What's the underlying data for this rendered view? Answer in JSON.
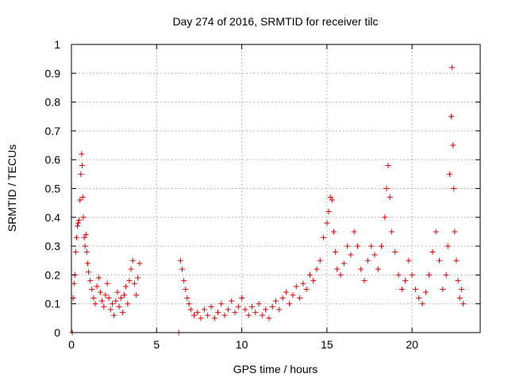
{
  "chart_data": {
    "type": "scatter",
    "title": "Day 274 of 2016, SRMTID for receiver tilc",
    "xlabel": "GPS time / hours",
    "ylabel": "SRMTID / TECUs",
    "xlim": [
      0,
      24
    ],
    "ylim": [
      0,
      1
    ],
    "x_ticks": [
      0,
      5,
      10,
      15,
      20
    ],
    "y_ticks": [
      0,
      0.1,
      0.2,
      0.3,
      0.4,
      0.5,
      0.6,
      0.7,
      0.8,
      0.9,
      1
    ],
    "x_tick_labels": [
      "0",
      "5",
      "10",
      "15",
      "20"
    ],
    "y_tick_labels": [
      "0",
      "0.1",
      "0.2",
      "0.3",
      "0.4",
      "0.5",
      "0.6",
      "0.7",
      "0.8",
      "0.9",
      "1"
    ],
    "grid": true,
    "series": [
      {
        "color": "#e00000",
        "marker": "plus",
        "points": [
          [
            0.05,
            0.0
          ],
          [
            0.1,
            0.12
          ],
          [
            0.15,
            0.17
          ],
          [
            0.2,
            0.2
          ],
          [
            0.25,
            0.28
          ],
          [
            0.3,
            0.33
          ],
          [
            0.35,
            0.37
          ],
          [
            0.4,
            0.38
          ],
          [
            0.45,
            0.39
          ],
          [
            0.5,
            0.46
          ],
          [
            0.55,
            0.55
          ],
          [
            0.6,
            0.62
          ],
          [
            0.63,
            0.58
          ],
          [
            0.66,
            0.47
          ],
          [
            0.7,
            0.4
          ],
          [
            0.75,
            0.33
          ],
          [
            0.8,
            0.3
          ],
          [
            0.85,
            0.34
          ],
          [
            0.9,
            0.28
          ],
          [
            0.95,
            0.24
          ],
          [
            1.0,
            0.21
          ],
          [
            1.1,
            0.18
          ],
          [
            1.2,
            0.15
          ],
          [
            1.3,
            0.12
          ],
          [
            1.4,
            0.1
          ],
          [
            1.5,
            0.16
          ],
          [
            1.6,
            0.19
          ],
          [
            1.7,
            0.14
          ],
          [
            1.8,
            0.11
          ],
          [
            1.9,
            0.09
          ],
          [
            2.0,
            0.13
          ],
          [
            2.1,
            0.17
          ],
          [
            2.2,
            0.12
          ],
          [
            2.3,
            0.08
          ],
          [
            2.4,
            0.1
          ],
          [
            2.5,
            0.06
          ],
          [
            2.6,
            0.11
          ],
          [
            2.7,
            0.14
          ],
          [
            2.8,
            0.09
          ],
          [
            2.9,
            0.12
          ],
          [
            3.0,
            0.07
          ],
          [
            3.1,
            0.13
          ],
          [
            3.2,
            0.16
          ],
          [
            3.3,
            0.1
          ],
          [
            3.4,
            0.18
          ],
          [
            3.5,
            0.22
          ],
          [
            3.6,
            0.25
          ],
          [
            3.7,
            0.17
          ],
          [
            3.8,
            0.13
          ],
          [
            3.9,
            0.19
          ],
          [
            4.0,
            0.24
          ],
          [
            6.3,
            0.0
          ],
          [
            6.4,
            0.25
          ],
          [
            6.5,
            0.22
          ],
          [
            6.6,
            0.18
          ],
          [
            6.7,
            0.15
          ],
          [
            6.8,
            0.12
          ],
          [
            6.9,
            0.1
          ],
          [
            7.0,
            0.08
          ],
          [
            7.2,
            0.06
          ],
          [
            7.4,
            0.07
          ],
          [
            7.6,
            0.05
          ],
          [
            7.8,
            0.08
          ],
          [
            8.0,
            0.06
          ],
          [
            8.2,
            0.09
          ],
          [
            8.4,
            0.05
          ],
          [
            8.6,
            0.07
          ],
          [
            8.8,
            0.1
          ],
          [
            9.0,
            0.06
          ],
          [
            9.2,
            0.08
          ],
          [
            9.4,
            0.11
          ],
          [
            9.6,
            0.07
          ],
          [
            9.8,
            0.09
          ],
          [
            10.0,
            0.12
          ],
          [
            10.2,
            0.08
          ],
          [
            10.4,
            0.06
          ],
          [
            10.6,
            0.09
          ],
          [
            10.8,
            0.07
          ],
          [
            11.0,
            0.1
          ],
          [
            11.2,
            0.06
          ],
          [
            11.4,
            0.08
          ],
          [
            11.6,
            0.05
          ],
          [
            11.8,
            0.09
          ],
          [
            12.0,
            0.11
          ],
          [
            12.2,
            0.08
          ],
          [
            12.4,
            0.12
          ],
          [
            12.6,
            0.14
          ],
          [
            12.8,
            0.1
          ],
          [
            13.0,
            0.13
          ],
          [
            13.2,
            0.16
          ],
          [
            13.4,
            0.12
          ],
          [
            13.6,
            0.17
          ],
          [
            13.8,
            0.15
          ],
          [
            14.0,
            0.2
          ],
          [
            14.2,
            0.18
          ],
          [
            14.4,
            0.22
          ],
          [
            14.6,
            0.25
          ],
          [
            14.8,
            0.33
          ],
          [
            15.0,
            0.38
          ],
          [
            15.1,
            0.42
          ],
          [
            15.2,
            0.47
          ],
          [
            15.3,
            0.46
          ],
          [
            15.4,
            0.35
          ],
          [
            15.5,
            0.28
          ],
          [
            15.6,
            0.22
          ],
          [
            15.8,
            0.2
          ],
          [
            16.0,
            0.24
          ],
          [
            16.2,
            0.3
          ],
          [
            16.4,
            0.27
          ],
          [
            16.6,
            0.35
          ],
          [
            16.8,
            0.3
          ],
          [
            17.0,
            0.22
          ],
          [
            17.2,
            0.18
          ],
          [
            17.4,
            0.25
          ],
          [
            17.6,
            0.3
          ],
          [
            17.8,
            0.27
          ],
          [
            18.0,
            0.22
          ],
          [
            18.2,
            0.3
          ],
          [
            18.4,
            0.4
          ],
          [
            18.5,
            0.5
          ],
          [
            18.6,
            0.58
          ],
          [
            18.7,
            0.47
          ],
          [
            18.8,
            0.35
          ],
          [
            19.0,
            0.28
          ],
          [
            19.2,
            0.2
          ],
          [
            19.4,
            0.15
          ],
          [
            19.6,
            0.18
          ],
          [
            19.8,
            0.25
          ],
          [
            20.0,
            0.2
          ],
          [
            20.2,
            0.15
          ],
          [
            20.4,
            0.12
          ],
          [
            20.6,
            0.1
          ],
          [
            20.8,
            0.14
          ],
          [
            21.0,
            0.2
          ],
          [
            21.2,
            0.28
          ],
          [
            21.4,
            0.35
          ],
          [
            21.6,
            0.25
          ],
          [
            21.8,
            0.15
          ],
          [
            22.0,
            0.2
          ],
          [
            22.1,
            0.3
          ],
          [
            22.2,
            0.55
          ],
          [
            22.3,
            0.75
          ],
          [
            22.35,
            0.92
          ],
          [
            22.4,
            0.65
          ],
          [
            22.45,
            0.5
          ],
          [
            22.5,
            0.35
          ],
          [
            22.6,
            0.25
          ],
          [
            22.7,
            0.18
          ],
          [
            22.8,
            0.12
          ],
          [
            22.9,
            0.15
          ],
          [
            23.0,
            0.1
          ]
        ]
      }
    ]
  }
}
